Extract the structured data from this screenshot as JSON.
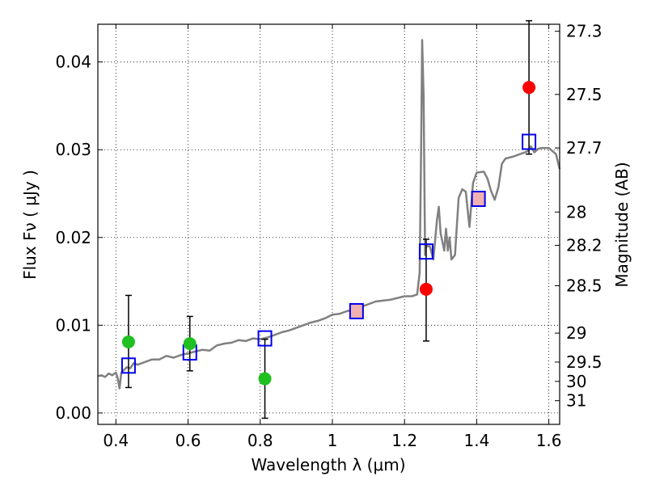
{
  "chart_data": {
    "type": "scatter",
    "xlabel": "Wavelength  λ (μm)",
    "ylabel": "Flux  Fν  ( μJy )",
    "ylabel_right": "Magnitude (AB)",
    "xlim": [
      0.35,
      1.63
    ],
    "ylim": [
      -0.0013,
      0.0443
    ],
    "grid": true,
    "x_ticks": [
      0.4,
      0.6,
      0.8,
      1.0,
      1.2,
      1.4,
      1.6
    ],
    "x_tick_labels": [
      "0.4",
      "0.6",
      "0.8",
      "1",
      "1.2",
      "1.4",
      "1.6"
    ],
    "y_ticks": [
      0.0,
      0.01,
      0.02,
      0.03,
      0.04
    ],
    "y_tick_labels": [
      "0.00",
      "0.01",
      "0.02",
      "0.03",
      "0.04"
    ],
    "right_ticks": [
      {
        "flux": 0.0435,
        "label": "27.3"
      },
      {
        "flux": 0.0363,
        "label": "27.5"
      },
      {
        "flux": 0.0302,
        "label": "27.7"
      },
      {
        "flux": 0.0229,
        "label": "28"
      },
      {
        "flux": 0.0191,
        "label": "28.2"
      },
      {
        "flux": 0.0145,
        "label": "28.5"
      },
      {
        "flux": 0.0091,
        "label": "29"
      },
      {
        "flux": 0.0058,
        "label": "29.5"
      },
      {
        "flux": 0.0036,
        "label": "30"
      },
      {
        "flux": 0.0014,
        "label": "31"
      }
    ],
    "colors": {
      "model": "#808080",
      "green": "#20c020",
      "red": "#ff0000",
      "box": "#0000ee",
      "box_fill": "#f0b0b0",
      "errorbar": "#000000"
    },
    "model_spectrum": [
      [
        0.35,
        0.0042
      ],
      [
        0.36,
        0.0043
      ],
      [
        0.37,
        0.0041
      ],
      [
        0.38,
        0.0045
      ],
      [
        0.39,
        0.0043
      ],
      [
        0.4,
        0.0046
      ],
      [
        0.405,
        0.004
      ],
      [
        0.41,
        0.0028
      ],
      [
        0.415,
        0.0046
      ],
      [
        0.42,
        0.0048
      ],
      [
        0.43,
        0.0052
      ],
      [
        0.44,
        0.0051
      ],
      [
        0.45,
        0.0057
      ],
      [
        0.46,
        0.0055
      ],
      [
        0.48,
        0.0058
      ],
      [
        0.5,
        0.0061
      ],
      [
        0.52,
        0.0061
      ],
      [
        0.54,
        0.0065
      ],
      [
        0.56,
        0.0063
      ],
      [
        0.58,
        0.0066
      ],
      [
        0.6,
        0.0068
      ],
      [
        0.62,
        0.007
      ],
      [
        0.64,
        0.0072
      ],
      [
        0.66,
        0.0071
      ],
      [
        0.68,
        0.0077
      ],
      [
        0.7,
        0.0079
      ],
      [
        0.72,
        0.008
      ],
      [
        0.74,
        0.0083
      ],
      [
        0.76,
        0.0082
      ],
      [
        0.78,
        0.0085
      ],
      [
        0.8,
        0.0084
      ],
      [
        0.82,
        0.0086
      ],
      [
        0.84,
        0.0089
      ],
      [
        0.86,
        0.0092
      ],
      [
        0.88,
        0.0094
      ],
      [
        0.9,
        0.0097
      ],
      [
        0.92,
        0.01
      ],
      [
        0.94,
        0.0103
      ],
      [
        0.96,
        0.0105
      ],
      [
        0.98,
        0.0108
      ],
      [
        1.0,
        0.0112
      ],
      [
        1.02,
        0.0113
      ],
      [
        1.04,
        0.0116
      ],
      [
        1.06,
        0.0118
      ],
      [
        1.08,
        0.0121
      ],
      [
        1.1,
        0.0124
      ],
      [
        1.12,
        0.0127
      ],
      [
        1.14,
        0.0128
      ],
      [
        1.16,
        0.0129
      ],
      [
        1.18,
        0.0131
      ],
      [
        1.2,
        0.0133
      ],
      [
        1.22,
        0.0133
      ],
      [
        1.235,
        0.0135
      ],
      [
        1.242,
        0.016
      ],
      [
        1.246,
        0.03
      ],
      [
        1.249,
        0.0425
      ],
      [
        1.253,
        0.036
      ],
      [
        1.257,
        0.018
      ],
      [
        1.26,
        0.019
      ],
      [
        1.27,
        0.019
      ],
      [
        1.28,
        0.0175
      ],
      [
        1.29,
        0.022
      ],
      [
        1.295,
        0.0235
      ],
      [
        1.3,
        0.0205
      ],
      [
        1.31,
        0.0185
      ],
      [
        1.315,
        0.021
      ],
      [
        1.32,
        0.0185
      ],
      [
        1.325,
        0.02
      ],
      [
        1.33,
        0.0175
      ],
      [
        1.34,
        0.018
      ],
      [
        1.35,
        0.0245
      ],
      [
        1.36,
        0.0255
      ],
      [
        1.37,
        0.0252
      ],
      [
        1.375,
        0.0232
      ],
      [
        1.38,
        0.0212
      ],
      [
        1.39,
        0.0262
      ],
      [
        1.4,
        0.0274
      ],
      [
        1.42,
        0.0275
      ],
      [
        1.43,
        0.0267
      ],
      [
        1.44,
        0.0253
      ],
      [
        1.45,
        0.0243
      ],
      [
        1.46,
        0.0257
      ],
      [
        1.47,
        0.0284
      ],
      [
        1.48,
        0.029
      ],
      [
        1.5,
        0.0292
      ],
      [
        1.52,
        0.0295
      ],
      [
        1.54,
        0.0298
      ],
      [
        1.55,
        0.0304
      ],
      [
        1.56,
        0.0297
      ],
      [
        1.57,
        0.0301
      ],
      [
        1.58,
        0.0302
      ],
      [
        1.6,
        0.0302
      ],
      [
        1.62,
        0.0295
      ],
      [
        1.63,
        0.0278
      ]
    ],
    "green_points": [
      {
        "x": 0.435,
        "y": 0.0081,
        "err_low": 0.0052,
        "err_high": 0.0053
      },
      {
        "x": 0.605,
        "y": 0.0079,
        "err_low": 0.0031,
        "err_high": 0.0031
      },
      {
        "x": 0.813,
        "y": 0.0039,
        "err_low": 0.0045,
        "err_high": 0.0045
      }
    ],
    "red_points": [
      {
        "x": 1.26,
        "y": 0.0141,
        "err_low": 0.0059,
        "err_high": 0.0057
      },
      {
        "x": 1.545,
        "y": 0.0371,
        "err_low": 0.0076,
        "err_high": 0.0076
      }
    ],
    "model_boxes": [
      {
        "x": 0.435,
        "y": 0.0054,
        "filled": false
      },
      {
        "x": 0.605,
        "y": 0.0069,
        "filled": false
      },
      {
        "x": 0.813,
        "y": 0.0085,
        "filled": false
      },
      {
        "x": 1.067,
        "y": 0.0116,
        "filled": true
      },
      {
        "x": 1.26,
        "y": 0.0184,
        "filled": false
      },
      {
        "x": 1.405,
        "y": 0.0244,
        "filled": true
      },
      {
        "x": 1.545,
        "y": 0.0309,
        "filled": false
      }
    ]
  }
}
